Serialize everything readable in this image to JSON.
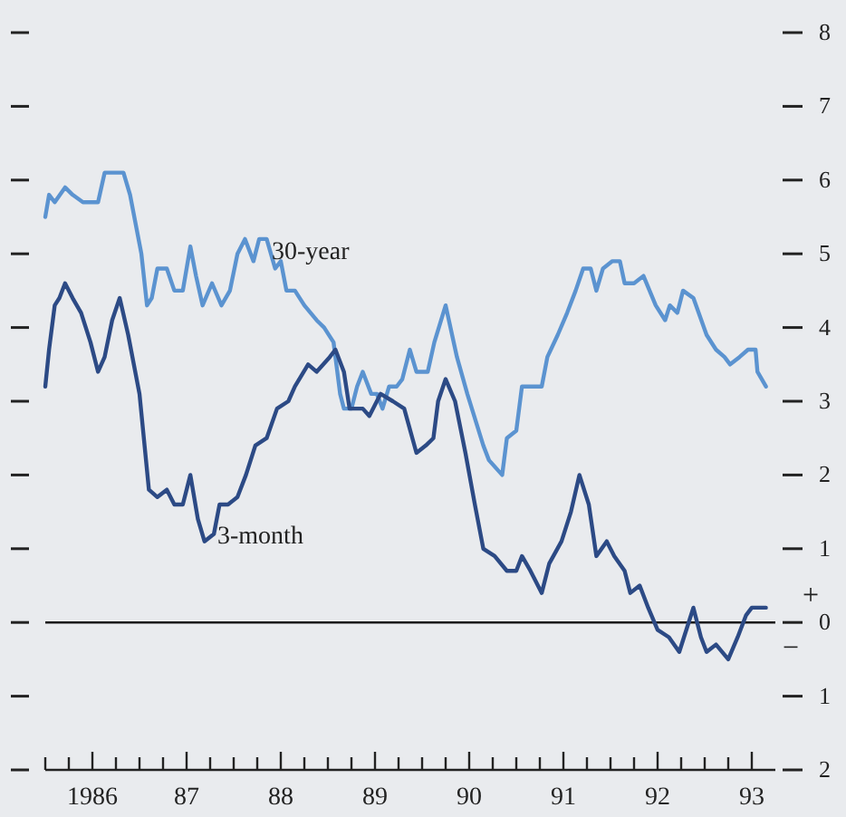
{
  "chart_data": {
    "type": "line",
    "xlim": [
      1985.5,
      1993.25
    ],
    "xticks": [
      {
        "value": 1985.5,
        "label": null
      },
      {
        "value": 1985.75,
        "label": null
      },
      {
        "value": 1986,
        "label": "1986"
      },
      {
        "value": 1986.25,
        "label": null
      },
      {
        "value": 1986.5,
        "label": null
      },
      {
        "value": 1986.75,
        "label": null
      },
      {
        "value": 1987,
        "label": "87"
      },
      {
        "value": 1987.25,
        "label": null
      },
      {
        "value": 1987.5,
        "label": null
      },
      {
        "value": 1987.75,
        "label": null
      },
      {
        "value": 1988,
        "label": "88"
      },
      {
        "value": 1988.25,
        "label": null
      },
      {
        "value": 1988.5,
        "label": null
      },
      {
        "value": 1988.75,
        "label": null
      },
      {
        "value": 1989,
        "label": "89"
      },
      {
        "value": 1989.25,
        "label": null
      },
      {
        "value": 1989.5,
        "label": null
      },
      {
        "value": 1989.75,
        "label": null
      },
      {
        "value": 1990,
        "label": "90"
      },
      {
        "value": 1990.25,
        "label": null
      },
      {
        "value": 1990.5,
        "label": null
      },
      {
        "value": 1990.75,
        "label": null
      },
      {
        "value": 1991,
        "label": "91"
      },
      {
        "value": 1991.25,
        "label": null
      },
      {
        "value": 1991.5,
        "label": null
      },
      {
        "value": 1991.75,
        "label": null
      },
      {
        "value": 1992,
        "label": "92"
      },
      {
        "value": 1992.25,
        "label": null
      },
      {
        "value": 1992.5,
        "label": null
      },
      {
        "value": 1992.75,
        "label": null
      },
      {
        "value": 1993,
        "label": "93"
      }
    ],
    "ylim": [
      -2,
      8
    ],
    "yticks": [
      {
        "value": -2,
        "label": "2"
      },
      {
        "value": -1,
        "label": "1"
      },
      0,
      1,
      2,
      3,
      4,
      5,
      6,
      7,
      8
    ],
    "grid": false,
    "legend": false,
    "marker": "none",
    "line_style": "solid",
    "ref_lines": [
      {
        "axis": "y",
        "value": 0,
        "color": "#1a1a1a"
      }
    ],
    "annotations": [
      "+",
      "−"
    ],
    "series": [
      {
        "name": "30-year",
        "color": "#5b93d0",
        "x": [
          1985.5,
          1985.54,
          1985.6,
          1985.71,
          1985.79,
          1985.9,
          1986.06,
          1986.13,
          1986.27,
          1986.33,
          1986.4,
          1986.52,
          1986.58,
          1986.63,
          1986.69,
          1986.79,
          1986.87,
          1986.96,
          1987.04,
          1987.1,
          1987.17,
          1987.27,
          1987.37,
          1987.46,
          1987.54,
          1987.62,
          1987.71,
          1987.77,
          1987.85,
          1987.94,
          1988.0,
          1988.06,
          1988.15,
          1988.25,
          1988.38,
          1988.46,
          1988.56,
          1988.63,
          1988.67,
          1988.75,
          1988.81,
          1988.87,
          1988.96,
          1989.02,
          1989.08,
          1989.15,
          1989.23,
          1989.29,
          1989.37,
          1989.44,
          1989.56,
          1989.63,
          1989.75,
          1989.87,
          1989.98,
          1990.15,
          1990.21,
          1990.35,
          1990.4,
          1990.5,
          1990.56,
          1990.65,
          1990.77,
          1990.83,
          1990.94,
          1991.04,
          1991.13,
          1991.21,
          1991.29,
          1991.35,
          1991.42,
          1991.52,
          1991.6,
          1991.65,
          1991.75,
          1991.85,
          1991.98,
          1992.08,
          1992.13,
          1992.21,
          1992.27,
          1992.38,
          1992.52,
          1992.62,
          1992.71,
          1992.77,
          1992.87,
          1992.96,
          1993.04,
          1993.06,
          1993.15
        ],
        "values": [
          5.5,
          5.8,
          5.7,
          5.9,
          5.8,
          5.7,
          5.7,
          6.1,
          6.1,
          6.1,
          5.8,
          5.0,
          4.3,
          4.4,
          4.8,
          4.8,
          4.5,
          4.5,
          5.1,
          4.7,
          4.3,
          4.6,
          4.3,
          4.5,
          5.0,
          5.2,
          4.9,
          5.2,
          5.2,
          4.8,
          4.9,
          4.5,
          4.5,
          4.3,
          4.1,
          4.0,
          3.8,
          3.1,
          2.9,
          2.9,
          3.2,
          3.4,
          3.1,
          3.1,
          2.9,
          3.2,
          3.2,
          3.3,
          3.7,
          3.4,
          3.4,
          3.8,
          4.3,
          3.6,
          3.1,
          2.4,
          2.2,
          2.0,
          2.5,
          2.6,
          3.2,
          3.2,
          3.2,
          3.6,
          3.9,
          4.2,
          4.5,
          4.8,
          4.8,
          4.5,
          4.8,
          4.9,
          4.9,
          4.6,
          4.6,
          4.7,
          4.3,
          4.1,
          4.3,
          4.2,
          4.5,
          4.4,
          3.9,
          3.7,
          3.6,
          3.5,
          3.6,
          3.7,
          3.7,
          3.4,
          3.2
        ]
      },
      {
        "name": "3-month",
        "color": "#2c4a85",
        "x": [
          1985.5,
          1985.54,
          1985.6,
          1985.65,
          1985.71,
          1985.79,
          1985.88,
          1985.98,
          1986.06,
          1986.13,
          1986.21,
          1986.29,
          1986.38,
          1986.5,
          1986.6,
          1986.69,
          1986.79,
          1986.87,
          1986.96,
          1987.04,
          1987.12,
          1987.19,
          1987.29,
          1987.35,
          1987.44,
          1987.54,
          1987.63,
          1987.73,
          1987.85,
          1987.96,
          1988.08,
          1988.15,
          1988.29,
          1988.38,
          1988.52,
          1988.58,
          1988.67,
          1988.73,
          1988.87,
          1988.94,
          1989.06,
          1989.19,
          1989.31,
          1989.44,
          1989.54,
          1989.62,
          1989.67,
          1989.75,
          1989.85,
          1989.96,
          1990.06,
          1990.15,
          1990.27,
          1990.4,
          1990.5,
          1990.56,
          1990.65,
          1990.77,
          1990.85,
          1990.98,
          1991.08,
          1991.17,
          1991.27,
          1991.35,
          1991.46,
          1991.54,
          1991.65,
          1991.71,
          1991.81,
          1991.9,
          1992.0,
          1992.12,
          1992.23,
          1992.38,
          1992.46,
          1992.52,
          1992.62,
          1992.75,
          1992.85,
          1992.94,
          1993.0,
          1993.15
        ],
        "values": [
          3.2,
          3.7,
          4.3,
          4.4,
          4.6,
          4.4,
          4.2,
          3.8,
          3.4,
          3.6,
          4.1,
          4.4,
          3.9,
          3.1,
          1.8,
          1.7,
          1.8,
          1.6,
          1.6,
          2.0,
          1.4,
          1.1,
          1.2,
          1.6,
          1.6,
          1.7,
          2.0,
          2.4,
          2.5,
          2.9,
          3.0,
          3.2,
          3.5,
          3.4,
          3.6,
          3.7,
          3.4,
          2.9,
          2.9,
          2.8,
          3.1,
          3.0,
          2.9,
          2.3,
          2.4,
          2.5,
          3.0,
          3.3,
          3.0,
          2.3,
          1.6,
          1.0,
          0.9,
          0.7,
          0.7,
          0.9,
          0.7,
          0.4,
          0.8,
          1.1,
          1.5,
          2.0,
          1.6,
          0.9,
          1.1,
          0.9,
          0.7,
          0.4,
          0.5,
          0.2,
          -0.1,
          -0.2,
          -0.4,
          0.2,
          -0.2,
          -0.4,
          -0.3,
          -0.5,
          -0.2,
          0.1,
          0.2,
          0.2
        ]
      }
    ]
  }
}
